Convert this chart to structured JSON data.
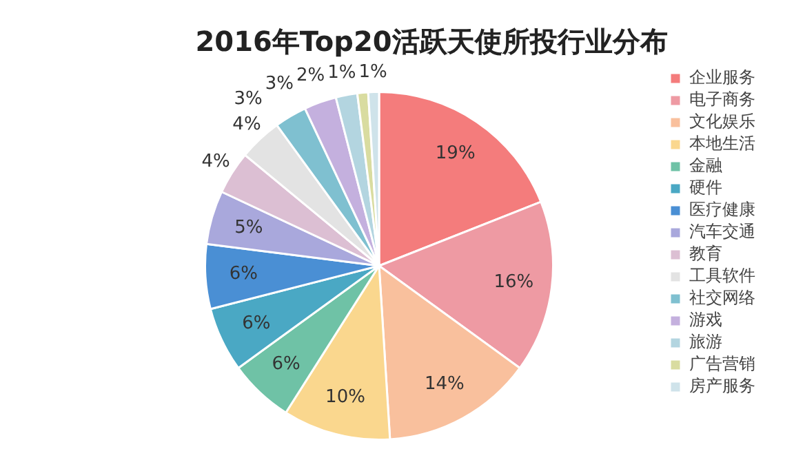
{
  "chart_data": {
    "type": "pie",
    "title": "2016年Top20活跃天使所投行业分布",
    "categories": [
      "企业服务",
      "电子商务",
      "文化娱乐",
      "本地生活",
      "金融",
      "硬件",
      "医疗健康",
      "汽车交通",
      "教育",
      "工具软件",
      "社交网络",
      "游戏",
      "旅游",
      "广告营销",
      "房产服务"
    ],
    "values": [
      19,
      16,
      14,
      10,
      6,
      6,
      6,
      5,
      4,
      4,
      3,
      3,
      2,
      1,
      1
    ],
    "colors": [
      "#f47c7c",
      "#ee9aa3",
      "#f9c09d",
      "#fad78e",
      "#6fc2a6",
      "#4aa8c4",
      "#4a8fd4",
      "#a9a8dc",
      "#dcbfd3",
      "#e3e3e3",
      "#7fc0d0",
      "#c4b0de",
      "#b3d5e0",
      "#d9dca0",
      "#cfe3ea"
    ],
    "value_labels": [
      "19%",
      "16%",
      "14%",
      "10%",
      "6%",
      "6%",
      "6%",
      "5%",
      "4%",
      "4%",
      "3%",
      "3%",
      "2%",
      "1%",
      "1%"
    ],
    "legend": "right"
  }
}
